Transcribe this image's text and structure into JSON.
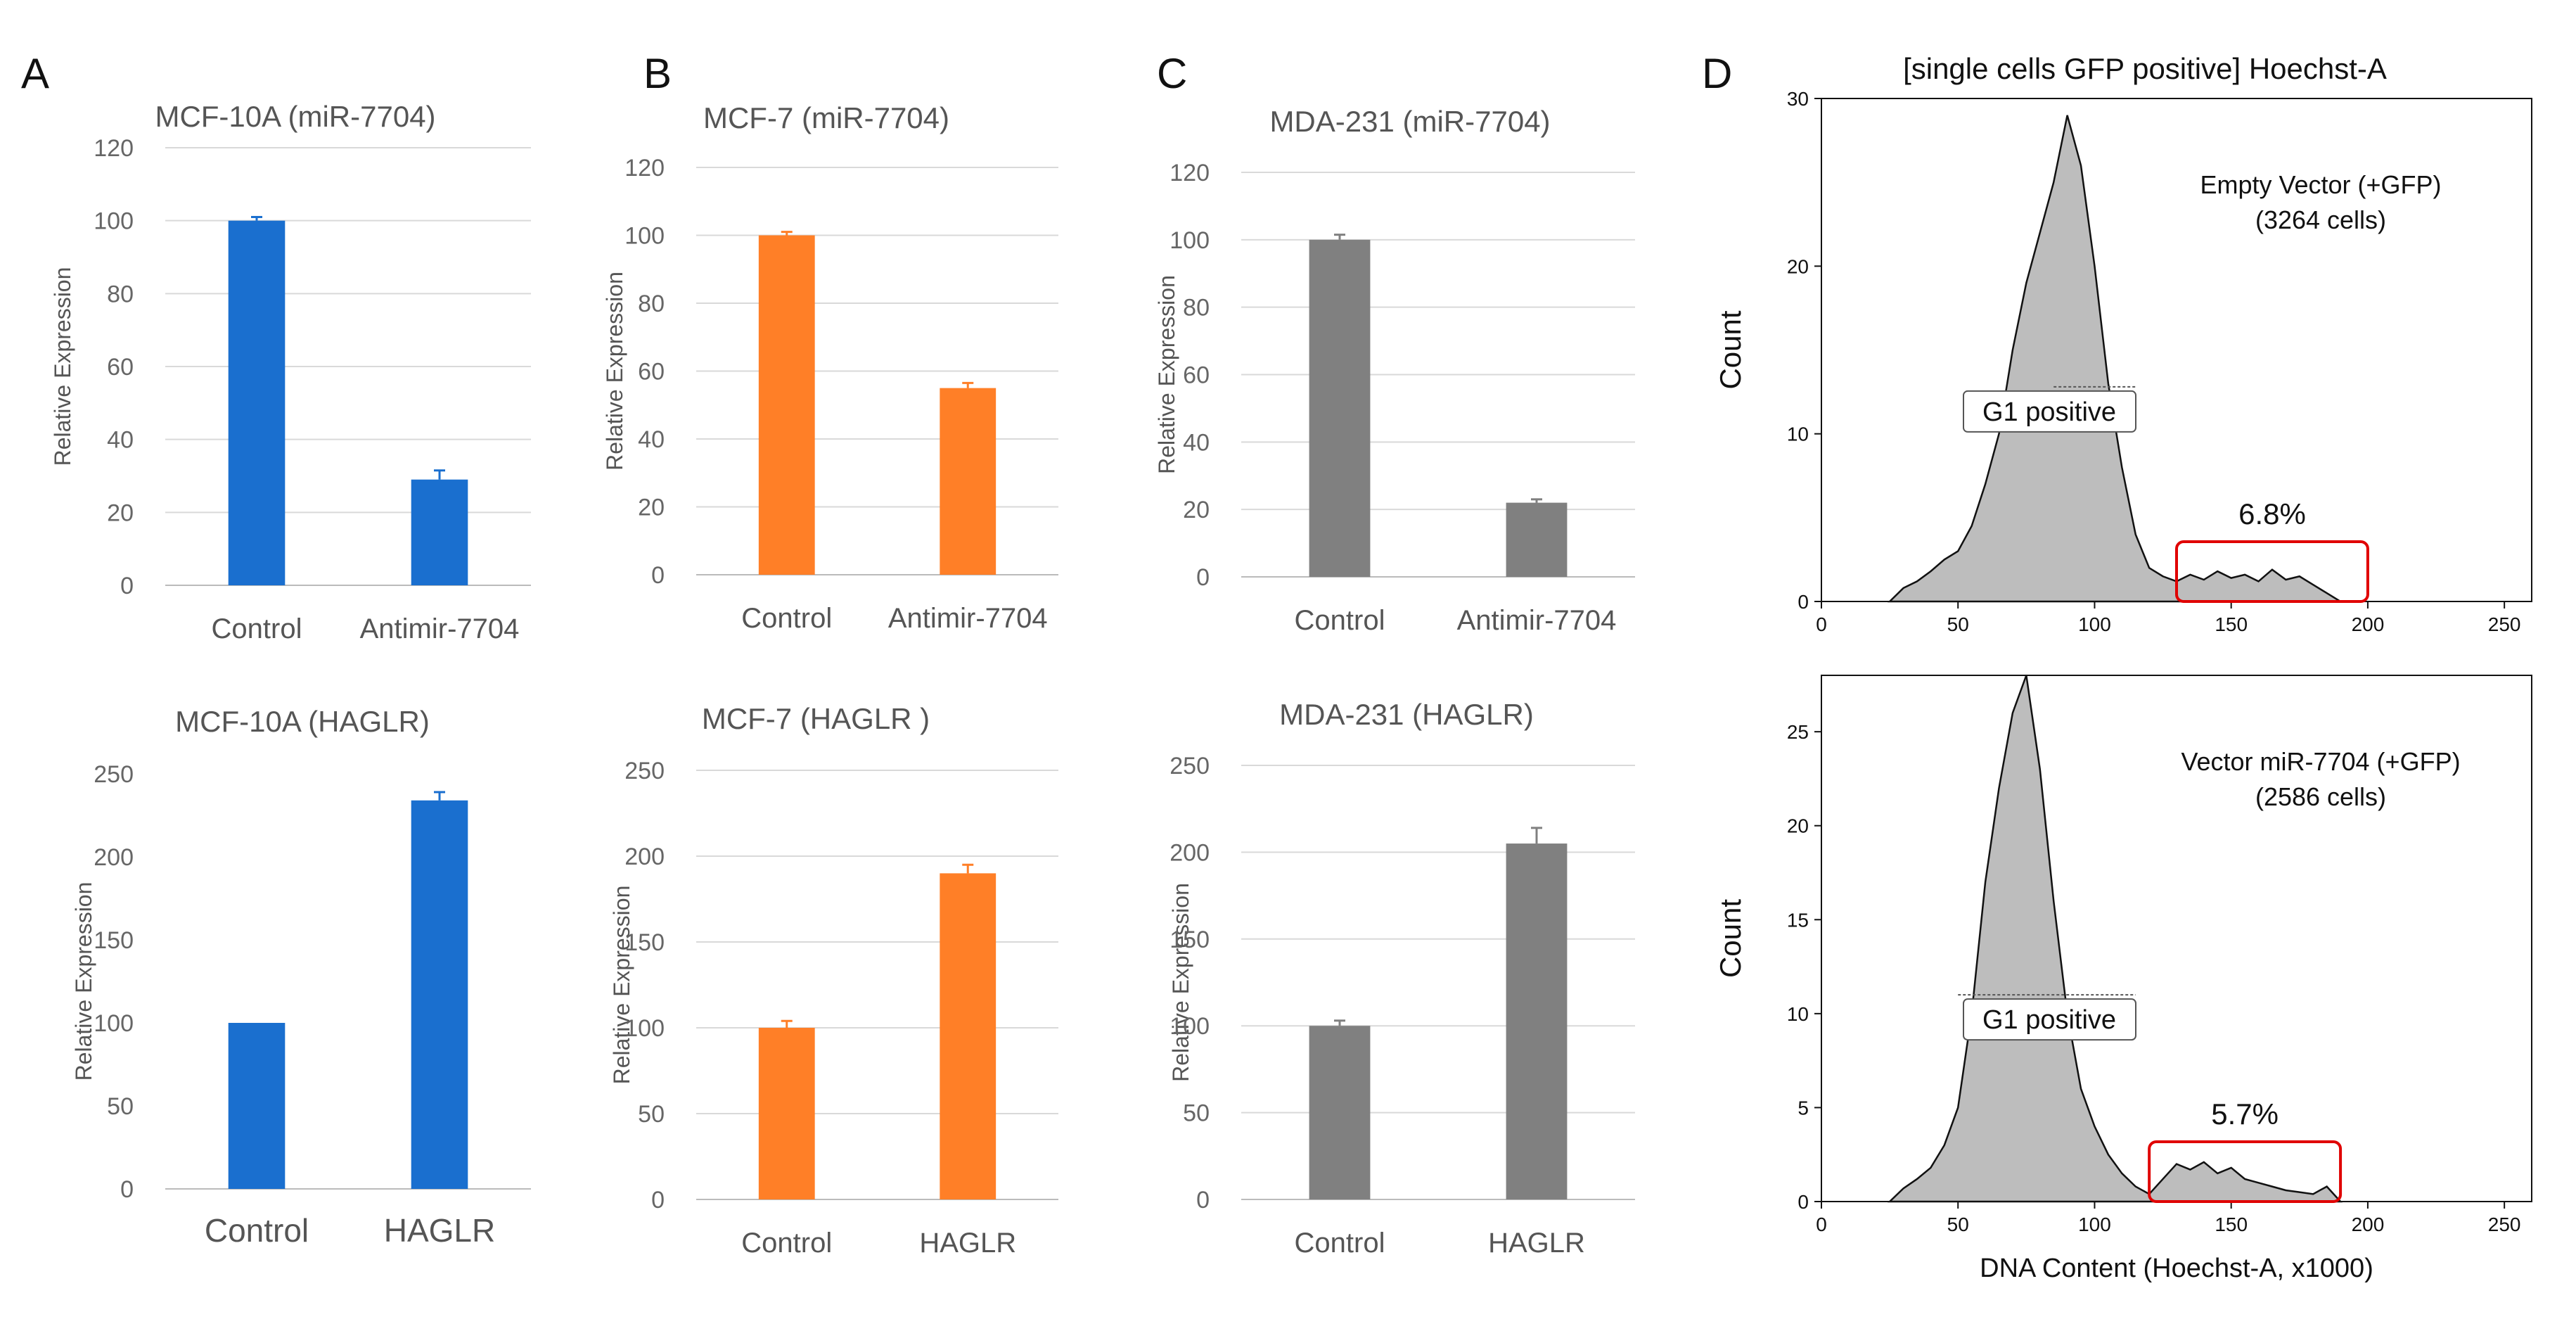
{
  "panels": [
    "A",
    "B",
    "C",
    "D"
  ],
  "colors": {
    "blue": "#1a6fcf",
    "orange": "#ff7f27",
    "gray": "#808080",
    "gate": "#e00000",
    "fill": "#bdbdbd",
    "axis_text": "#666666",
    "grid": "#d9d9d9"
  },
  "chart_data": [
    {
      "type": "bar",
      "panel": "A",
      "title": "MCF-10A (miR-7704)",
      "ylabel": "Relative Expression",
      "categories": [
        "Control",
        "Antimir-7704"
      ],
      "values": [
        100,
        29
      ],
      "errors": [
        1,
        2.5
      ],
      "ylim": [
        0,
        120
      ],
      "yticks": [
        "0",
        "20",
        "40",
        "60",
        "80",
        "100",
        "120"
      ],
      "grid": true,
      "color": "#1a6fcf"
    },
    {
      "type": "bar",
      "panel": "B",
      "title": "MCF-7 (miR-7704)",
      "ylabel": "Relative Expression",
      "categories": [
        "Control",
        "Antimir-7704"
      ],
      "values": [
        100,
        55
      ],
      "errors": [
        1,
        1.5
      ],
      "ylim": [
        0,
        120
      ],
      "yticks": [
        "0",
        "20",
        "40",
        "60",
        "80",
        "100",
        "120"
      ],
      "grid": true,
      "color": "#ff7f27"
    },
    {
      "type": "bar",
      "panel": "C",
      "title": "MDA-231 (miR-7704)",
      "ylabel": "Relative Expression",
      "categories": [
        "Control",
        "Antimir-7704"
      ],
      "values": [
        100,
        22
      ],
      "errors": [
        1.5,
        1
      ],
      "ylim": [
        0,
        120
      ],
      "yticks": [
        "0",
        "20",
        "40",
        "60",
        "80",
        "100",
        "120"
      ],
      "grid": true,
      "color": "#808080"
    },
    {
      "type": "bar",
      "panel": "A",
      "title": "MCF-10A (HAGLR)",
      "ylabel": "Relative Expression",
      "categories": [
        "Control",
        "HAGLR"
      ],
      "values": [
        100,
        234
      ],
      "errors": [
        0,
        5
      ],
      "ylim": [
        0,
        250
      ],
      "yticks": [
        "0",
        "50",
        "100",
        "150",
        "200",
        "250"
      ],
      "grid": false,
      "color": "#1a6fcf"
    },
    {
      "type": "bar",
      "panel": "B",
      "title": "MCF-7 (HAGLR )",
      "ylabel": "Relative Expression",
      "categories": [
        "Control",
        "HAGLR"
      ],
      "values": [
        100,
        190
      ],
      "errors": [
        4,
        5
      ],
      "ylim": [
        0,
        250
      ],
      "yticks": [
        "0",
        "50",
        "100",
        "150",
        "200",
        "250"
      ],
      "grid": true,
      "color": "#ff7f27"
    },
    {
      "type": "bar",
      "panel": "C",
      "title": "MDA-231 (HAGLR)",
      "ylabel": "Relative Expression",
      "categories": [
        "Control",
        "HAGLR"
      ],
      "values": [
        100,
        205
      ],
      "errors": [
        3,
        9
      ],
      "ylim": [
        0,
        250
      ],
      "yticks": [
        "0",
        "50",
        "100",
        "150",
        "200",
        "250"
      ],
      "grid": true,
      "color": "#808080"
    },
    {
      "type": "area",
      "panel": "D",
      "title": "[single cells GFP positive] Hoechst-A",
      "ylabel": "Count",
      "xlabel": "",
      "xlim": [
        0,
        260
      ],
      "ylim": [
        0,
        30
      ],
      "xticks": [
        "0",
        "50",
        "100",
        "150",
        "200",
        "250"
      ],
      "yticks": [
        "0",
        "10",
        "20",
        "30"
      ],
      "annotation": "Empty Vector (+GFP)",
      "cells": "(3264 cells)",
      "gate_label": "G1 positive",
      "gate_range": [
        85,
        115
      ],
      "percent": "6.8%",
      "percent_range": [
        130,
        200
      ],
      "x": [
        25,
        30,
        35,
        40,
        45,
        50,
        55,
        60,
        65,
        70,
        75,
        80,
        85,
        90,
        95,
        100,
        105,
        110,
        115,
        120,
        125,
        130,
        135,
        140,
        145,
        150,
        155,
        160,
        165,
        170,
        175,
        180,
        185,
        190
      ],
      "y": [
        0,
        0.8,
        1.2,
        1.8,
        2.5,
        3,
        4.5,
        7,
        10,
        15,
        19,
        22,
        25,
        29,
        26,
        20,
        13,
        8,
        4,
        2,
        1.5,
        1.2,
        1.6,
        1.3,
        1.8,
        1.4,
        1.6,
        1.2,
        1.9,
        1.3,
        1.5,
        1,
        0.5,
        0
      ]
    },
    {
      "type": "area",
      "panel": "D",
      "title": "",
      "ylabel": "Count",
      "xlabel": "DNA Content (Hoechst-A, x1000)",
      "xlim": [
        0,
        260
      ],
      "ylim": [
        0,
        28
      ],
      "xticks": [
        "0",
        "50",
        "100",
        "150",
        "200",
        "250"
      ],
      "yticks": [
        "0",
        "5",
        "10",
        "15",
        "20",
        "25"
      ],
      "annotation": "Vector miR-7704 (+GFP)",
      "cells": "(2586 cells)",
      "gate_label": "G1 positive",
      "gate_range": [
        50,
        115
      ],
      "percent": "5.7%",
      "percent_range": [
        120,
        190
      ],
      "x": [
        25,
        30,
        35,
        40,
        45,
        50,
        55,
        60,
        65,
        70,
        75,
        80,
        85,
        90,
        95,
        100,
        105,
        110,
        115,
        120,
        125,
        130,
        135,
        140,
        145,
        150,
        155,
        160,
        165,
        170,
        175,
        180,
        185,
        190
      ],
      "y": [
        0,
        0.7,
        1.2,
        1.8,
        3,
        5,
        10,
        17,
        22,
        26,
        28,
        23,
        16,
        10,
        6,
        4,
        2.5,
        1.5,
        0.8,
        0.4,
        1.2,
        2,
        1.7,
        2.1,
        1.5,
        1.8,
        1.2,
        1,
        0.8,
        0.6,
        0.5,
        0.4,
        0.8,
        0
      ]
    }
  ]
}
